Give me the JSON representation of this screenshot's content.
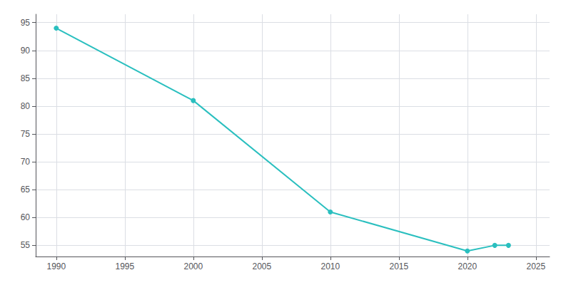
{
  "chart_data": {
    "type": "line",
    "x": [
      1990,
      2000,
      2010,
      2020,
      2022,
      2023
    ],
    "values": [
      94,
      81,
      61,
      54,
      55,
      55
    ],
    "color": "#2abfbf",
    "marker": "circle",
    "xlim": [
      1988.5,
      2026
    ],
    "ylim": [
      53,
      96.5
    ],
    "xticks": [
      1990,
      1995,
      2000,
      2005,
      2010,
      2015,
      2020,
      2025
    ],
    "yticks": [
      55,
      60,
      65,
      70,
      75,
      80,
      85,
      90,
      95
    ],
    "grid": true
  }
}
